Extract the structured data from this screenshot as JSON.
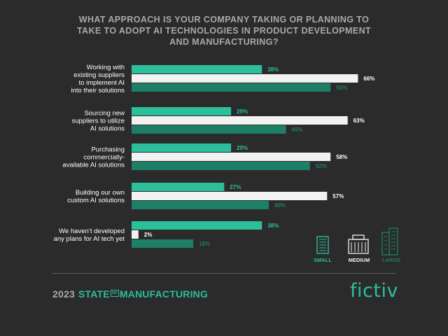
{
  "title": "WHAT APPROACH IS YOUR COMPANY TAKING OR PLANNING TO TAKE TO ADOPT AI TECHNOLOGIES IN PRODUCT DEVELOPMENT AND MANUFACTURING?",
  "colors": {
    "small": "#2bbf9b",
    "medium": "#f2f2f2",
    "large": "#1c7f66",
    "text": "#ffffff",
    "muted": "#a9a9a9"
  },
  "chart_data": {
    "type": "bar",
    "orientation": "horizontal",
    "title": "WHAT APPROACH IS YOUR COMPANY TAKING OR PLANNING TO TAKE TO ADOPT AI TECHNOLOGIES IN PRODUCT DEVELOPMENT AND MANUFACTURING?",
    "unit": "%",
    "xlim": [
      0,
      100
    ],
    "categories": [
      [
        "Working with",
        "existing  suppliers",
        "to implement AI",
        "into their solutions"
      ],
      [
        "Sourcing new",
        "suppliers  to utilize",
        "AI solutions"
      ],
      [
        "Purchasing",
        "commercially-",
        "available AI solutions"
      ],
      [
        "Building our own",
        "custom AI solutions"
      ],
      [
        "We haven’t developed",
        "any plans for AI tech yet"
      ]
    ],
    "series": [
      {
        "name": "SMALL",
        "values": [
          38,
          29,
          29,
          27,
          38
        ]
      },
      {
        "name": "MEDIUM",
        "values": [
          66,
          63,
          58,
          57,
          2
        ]
      },
      {
        "name": "LARGE",
        "values": [
          58,
          45,
          52,
          40,
          18
        ]
      }
    ],
    "legend_position": "bottom-right"
  },
  "footer": {
    "year": "2023",
    "state_a": "STATE",
    "of": "OF",
    "state_b": "MANUFACTURING",
    "brand": "fictiv"
  }
}
